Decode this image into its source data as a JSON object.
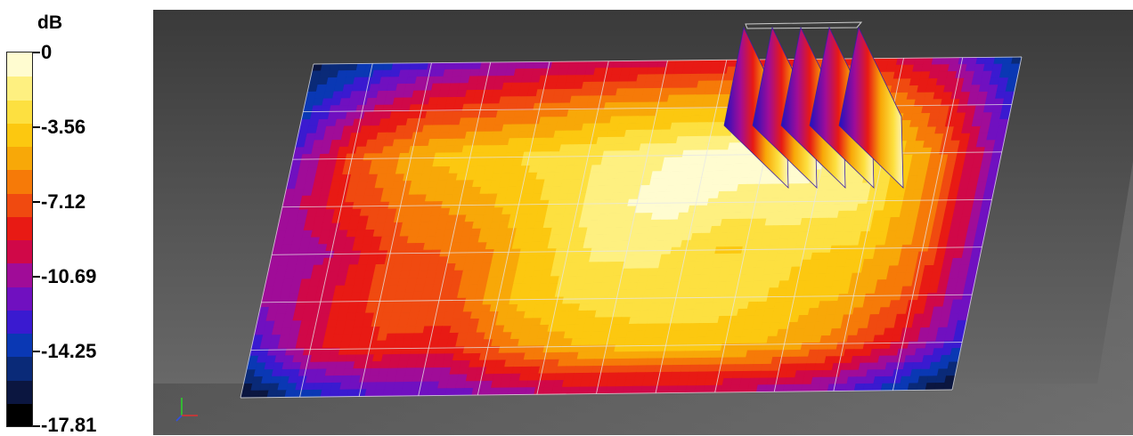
{
  "legend": {
    "unit": "dB",
    "ticks": [
      "0",
      "-3.56",
      "-7.12",
      "-10.69",
      "-14.25",
      "-17.81"
    ],
    "tick_values": [
      0,
      -3.56,
      -7.12,
      -10.69,
      -14.25,
      -17.81
    ],
    "colors": [
      "#000000",
      "#0b1640",
      "#0a2a78",
      "#0a38b4",
      "#3a1ad0",
      "#7010c0",
      "#a00c98",
      "#d00848",
      "#e81a14",
      "#f04a10",
      "#f67a08",
      "#f8a808",
      "#fcc810",
      "#fde040",
      "#fef080",
      "#fffcd0"
    ]
  },
  "chart_data": {
    "type": "heatmap",
    "colorbar_label": "dB",
    "range": [
      -17.81,
      0
    ],
    "rows": 8,
    "cols": 12,
    "values": [
      [
        -16,
        -14,
        -12,
        -11,
        -10,
        -9.5,
        -9,
        -8.5,
        -8,
        -9,
        -11,
        -15
      ],
      [
        -14,
        -10,
        -8,
        -7,
        -6,
        -5,
        -4.5,
        -4,
        -3.5,
        -5,
        -8,
        -13
      ],
      [
        -12,
        -7,
        -4.5,
        -3.5,
        -3,
        -2,
        -1,
        -0.3,
        -0.5,
        -2.5,
        -6,
        -12
      ],
      [
        -11,
        -8,
        -6,
        -5,
        -3.5,
        -1.5,
        -0.5,
        -1.5,
        -1.5,
        -2,
        -6,
        -12
      ],
      [
        -11,
        -10,
        -7,
        -6.5,
        -4,
        -2,
        -2,
        -3.5,
        -3,
        -3.5,
        -6,
        -12
      ],
      [
        -11,
        -9,
        -7,
        -7,
        -4,
        -3,
        -2.5,
        -2.5,
        -3.5,
        -4.5,
        -7,
        -12
      ],
      [
        -13,
        -9,
        -8,
        -8.5,
        -6,
        -4.5,
        -4,
        -4,
        -4.5,
        -6,
        -9,
        -13
      ],
      [
        -17,
        -14,
        -12.5,
        -12,
        -11,
        -10,
        -10,
        -10,
        -10.5,
        -11.5,
        -14,
        -17
      ]
    ]
  },
  "scene": {
    "background": "#404040",
    "grid_color": "#e6e6e6"
  }
}
